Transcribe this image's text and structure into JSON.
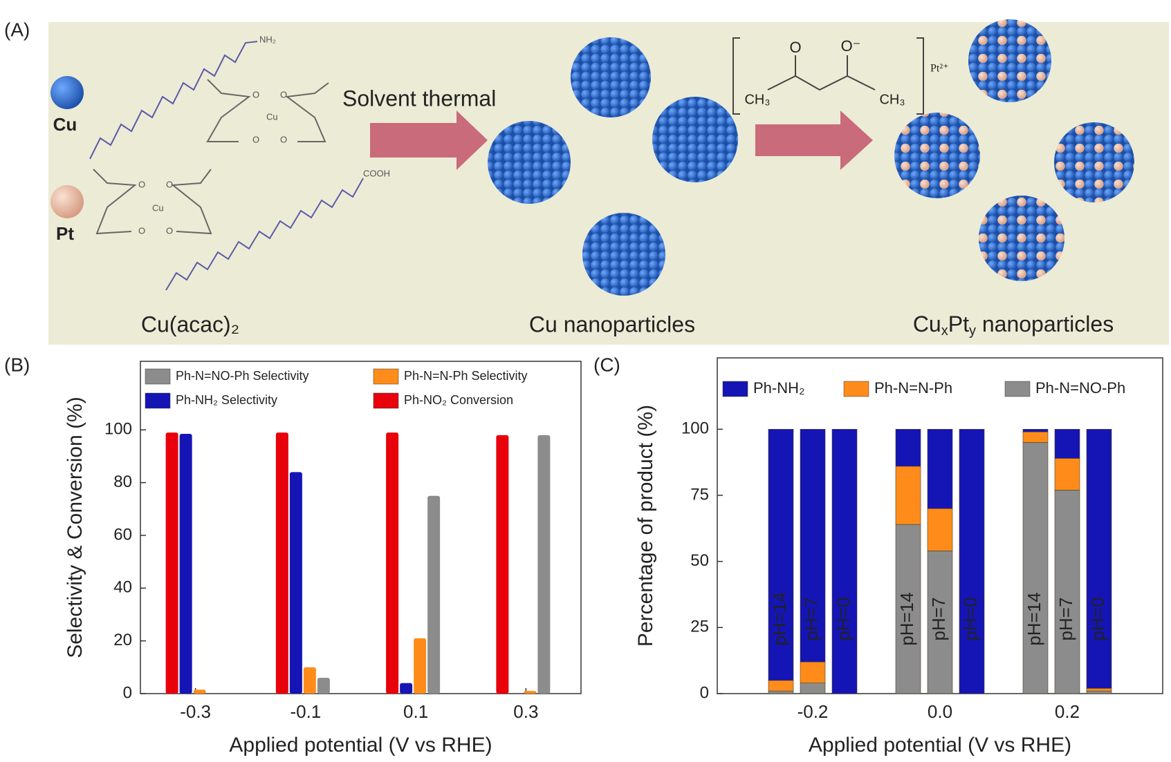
{
  "panel_labels": [
    "(A)",
    "(B)",
    "(C)"
  ],
  "schematic": {
    "cu_label": "Cu",
    "pt_label": "Pt",
    "step1": "Solvent thermal",
    "precursor": "Cu(acac)₂",
    "intermediate": "Cu nanoparticles",
    "product_parts": [
      "Cu",
      "x",
      "Pt",
      "y",
      " nanoparticles"
    ],
    "ligand_atoms": {
      "o": "O",
      "cu": "Cu"
    },
    "chain_ends": [
      "NH₂",
      "COOH"
    ],
    "pt_acac": {
      "o": "O",
      "o_minus": "O⁻",
      "ch3": "CH₃",
      "count": "2",
      "ion": "Pt²⁺"
    }
  },
  "chart_data": [
    {
      "type": "bar",
      "ylabel": "Selectivity & Conversion (%)",
      "xlabel": "Applied potential (V vs RHE)",
      "categories": [
        "-0.3",
        "-0.1",
        "0.1",
        "0.3"
      ],
      "series": [
        {
          "name": "Ph-NO₂ Conversion",
          "color": "#e8000b",
          "values": [
            99,
            99,
            99,
            98
          ]
        },
        {
          "name": "Ph-NH₂ Selectivity",
          "color": "#1515b5",
          "values": [
            98.5,
            84,
            4,
            0
          ]
        },
        {
          "name": "Ph-N=N-Ph Selectivity",
          "color": "#ff8c1a",
          "values": [
            1.5,
            10,
            21,
            1
          ]
        },
        {
          "name": "Ph-N=NO-Ph  Selectivity",
          "color": "#8c8c8c",
          "values": [
            0,
            6,
            75,
            98
          ]
        }
      ],
      "ylim": [
        0,
        126
      ],
      "yticks": [
        0,
        20,
        40,
        60,
        80,
        100
      ]
    },
    {
      "type": "stacked_bar",
      "ylabel": "Percentage of product (%)",
      "xlabel": "Applied potential (V vs RHE)",
      "groups": [
        "-0.2",
        "0.0",
        "0.2"
      ],
      "categories": [
        "pH=14",
        "pH=7",
        "pH=0",
        "pH=14",
        "pH=7",
        "pH=0",
        "pH=14",
        "pH=7",
        "pH=0"
      ],
      "series": [
        {
          "name": "Ph-N=NO-Ph",
          "color": "#8c8c8c",
          "values": [
            1,
            4,
            0,
            64,
            54,
            0,
            95,
            77,
            1
          ]
        },
        {
          "name": "Ph-N=N-Ph",
          "color": "#ff8c1a",
          "values": [
            4,
            8,
            0,
            22,
            16,
            0,
            4,
            12,
            1
          ]
        },
        {
          "name": "Ph-NH₂",
          "color": "#1515b5",
          "values": [
            95,
            88,
            100,
            14,
            30,
            100,
            1,
            11,
            98
          ]
        }
      ],
      "ylim": [
        0,
        127
      ],
      "yticks": [
        0,
        25,
        50,
        75,
        100
      ]
    }
  ]
}
